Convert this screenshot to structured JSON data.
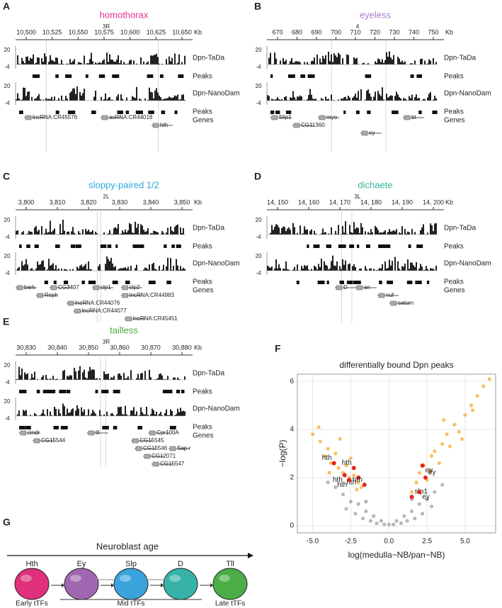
{
  "panels": [
    {
      "letter": "A",
      "title": "homothorax",
      "title_color": "#e6308a",
      "chromosome": "3R",
      "ticks": [
        "10,500",
        "10,525",
        "10,550",
        "10,575",
        "10,600",
        "10,625",
        "10,650"
      ],
      "unit": "Kb",
      "scale_labels": [
        "20",
        "-4"
      ],
      "tracks": [
        "Dpn-TaDa",
        "Peaks",
        "Dpn-NanoDam",
        "Peaks",
        "Genes"
      ],
      "genes": [
        "lncRNA:CR45576",
        "asRNA:CR44018",
        "hth"
      ]
    },
    {
      "letter": "B",
      "title": "eyeless",
      "title_color": "#b07cc6",
      "chromosome": "4",
      "ticks": [
        "670",
        "680",
        "690",
        "700",
        "710",
        "720",
        "730",
        "740",
        "750"
      ],
      "unit": "Kb",
      "scale_labels": [
        "20",
        "-4"
      ],
      "tracks": [
        "Dpn-TaDa",
        "Peaks",
        "Dpn-NanoDam",
        "Peaks",
        "Genes"
      ],
      "genes": [
        "Slip1",
        "myo",
        "bt",
        "CG11360",
        "ey"
      ]
    },
    {
      "letter": "C",
      "title": "sloppy-paired 1/2",
      "title_color": "#29a9df",
      "chromosome": "2L",
      "ticks": [
        "3,800",
        "3,810",
        "3,820",
        "3,830",
        "3,840",
        "3,850"
      ],
      "unit": "Kb",
      "scale_labels": [
        "20",
        "-4"
      ],
      "tracks": [
        "Dpn-TaDa",
        "Peaks",
        "Dpn-NanoDam",
        "Peaks",
        "Genes"
      ],
      "genes": [
        "bark",
        "CG3407",
        "slp1",
        "slp2",
        "Reph",
        "lncRNA:CR44983",
        "lncRNA:CR44076",
        "lncRNA:CR44077",
        "lncRNA:CR45451"
      ]
    },
    {
      "letter": "D",
      "title": "dichaete",
      "title_color": "#35b59a",
      "chromosome": "3L",
      "ticks": [
        "14, 150",
        "14, 160",
        "14, 170",
        "14, 180",
        "14, 190",
        "14, 200"
      ],
      "unit": "Kb",
      "scale_labels": [
        "20",
        "-4"
      ],
      "tracks": [
        "Dpn-TaDa",
        "Peaks",
        "Dpn-NanoDam",
        "Peaks",
        "Genes"
      ],
      "genes": [
        "D",
        "an",
        "nuf",
        "saturn"
      ]
    },
    {
      "letter": "E",
      "title": "tailless",
      "title_color": "#4caf3e",
      "chromosome": "3R",
      "ticks": [
        "30,830",
        "30,840",
        "30,850",
        "30,860",
        "30,870",
        "30,880"
      ],
      "unit": "Kb",
      "scale_labels": [
        "20",
        "-4"
      ],
      "tracks": [
        "Dpn-TaDa",
        "Peaks",
        "Dpn-NanoDam",
        "Peaks",
        "Genes"
      ],
      "genes": [
        "cindr",
        "tll",
        "Cpr100A",
        "CG15544",
        "CG15545",
        "Sap-r",
        "CG15546",
        "CG12071",
        "CG15547"
      ]
    }
  ],
  "panel_f": {
    "letter": "F"
  },
  "chart_data": {
    "type": "scatter",
    "title": "differentially bound Dpn peaks",
    "x_label": "log(medulla−NB/pan−NB)",
    "y_label": "−log(P)",
    "xlim": [
      -6,
      7
    ],
    "ylim": [
      -0.3,
      6.3
    ],
    "xticks": [
      {
        "value": -5,
        "label": "-5.0"
      },
      {
        "value": -2.5,
        "label": "-2.5"
      },
      {
        "value": 0,
        "label": "0.0"
      },
      {
        "value": 2.5,
        "label": "2.5"
      },
      {
        "value": 5,
        "label": "5.0"
      }
    ],
    "yticks": [
      0,
      2,
      4,
      6
    ],
    "grid": true,
    "series": [
      {
        "color": "#9a9a9a",
        "x": [
          -4,
          -3.5,
          -3,
          -2.5,
          -2,
          -1.5,
          -1,
          -0.5,
          0,
          0.5,
          1,
          1.5,
          2,
          2.5,
          3,
          3.5,
          -2.8,
          -2.2,
          -1.7,
          -1.2,
          -0.8,
          -0.3,
          0.3,
          0.8,
          1.2,
          1.7,
          2.2,
          2.8,
          -1.5,
          1.5
        ],
        "values": [
          1.8,
          1.6,
          1.3,
          1.0,
          0.9,
          0.6,
          0.4,
          0.2,
          0.05,
          0.2,
          0.4,
          0.6,
          0.9,
          1.1,
          1.4,
          1.7,
          0.7,
          0.5,
          0.3,
          0.2,
          0.1,
          0.05,
          0.05,
          0.1,
          0.2,
          0.3,
          0.5,
          0.8,
          1.0,
          1.1
        ]
      },
      {
        "color": "#f5a623",
        "x": [
          -5,
          -4.5,
          -4.2,
          -4,
          -3.8,
          -3.5,
          -3.3,
          -3,
          -2.8,
          -2.6,
          -2.3,
          -2,
          -1.8,
          -4.6,
          -3.9,
          -3.2,
          -2.5,
          -2.1,
          1.5,
          1.8,
          2,
          2.3,
          2.5,
          2.8,
          3,
          3.3,
          3.5,
          3.8,
          4,
          4.3,
          4.6,
          5,
          5.4,
          5.8,
          6.2,
          6.6,
          2.7,
          3.6,
          4.8,
          5.5
        ],
        "values": [
          3.8,
          3.5,
          2.9,
          3.2,
          2.6,
          3.0,
          2.4,
          2.2,
          2.5,
          2.0,
          2.1,
          1.8,
          1.6,
          4.1,
          2.2,
          3.6,
          2.8,
          1.5,
          1.4,
          1.8,
          2.2,
          2.5,
          1.9,
          2.9,
          3.1,
          2.6,
          3.4,
          3.8,
          3.3,
          4.2,
          3.9,
          4.6,
          5.0,
          5.4,
          5.8,
          6.1,
          2.3,
          4.4,
          3.6,
          4.8
        ]
      },
      {
        "color": "#e8231d",
        "x": [
          -3.6,
          -2.9,
          -2.3,
          -2.0,
          -1.6,
          -2.6,
          1.5,
          2.2,
          2.4,
          2.0
        ],
        "values": [
          2.6,
          2.1,
          2.4,
          2.0,
          1.7,
          1.9,
          1.2,
          2.5,
          2.0,
          1.4
        ],
        "annotations": [
          "hth",
          "hth",
          "hth",
          "hth",
          "hth",
          "hth",
          "slp1",
          "ey",
          "ey",
          "ey"
        ]
      }
    ]
  },
  "panel_g": {
    "letter": "G",
    "title": "Neuroblast age",
    "cells": [
      "Hth",
      "Ey",
      "Slp",
      "D",
      "Tll"
    ],
    "cell_colors": [
      "#e0307a",
      "#a066b0",
      "#3aa3dc",
      "#36b3a6",
      "#4aad45"
    ],
    "groups": [
      "Early tTFs",
      "Mid tTFs",
      "Late tTFs"
    ]
  }
}
